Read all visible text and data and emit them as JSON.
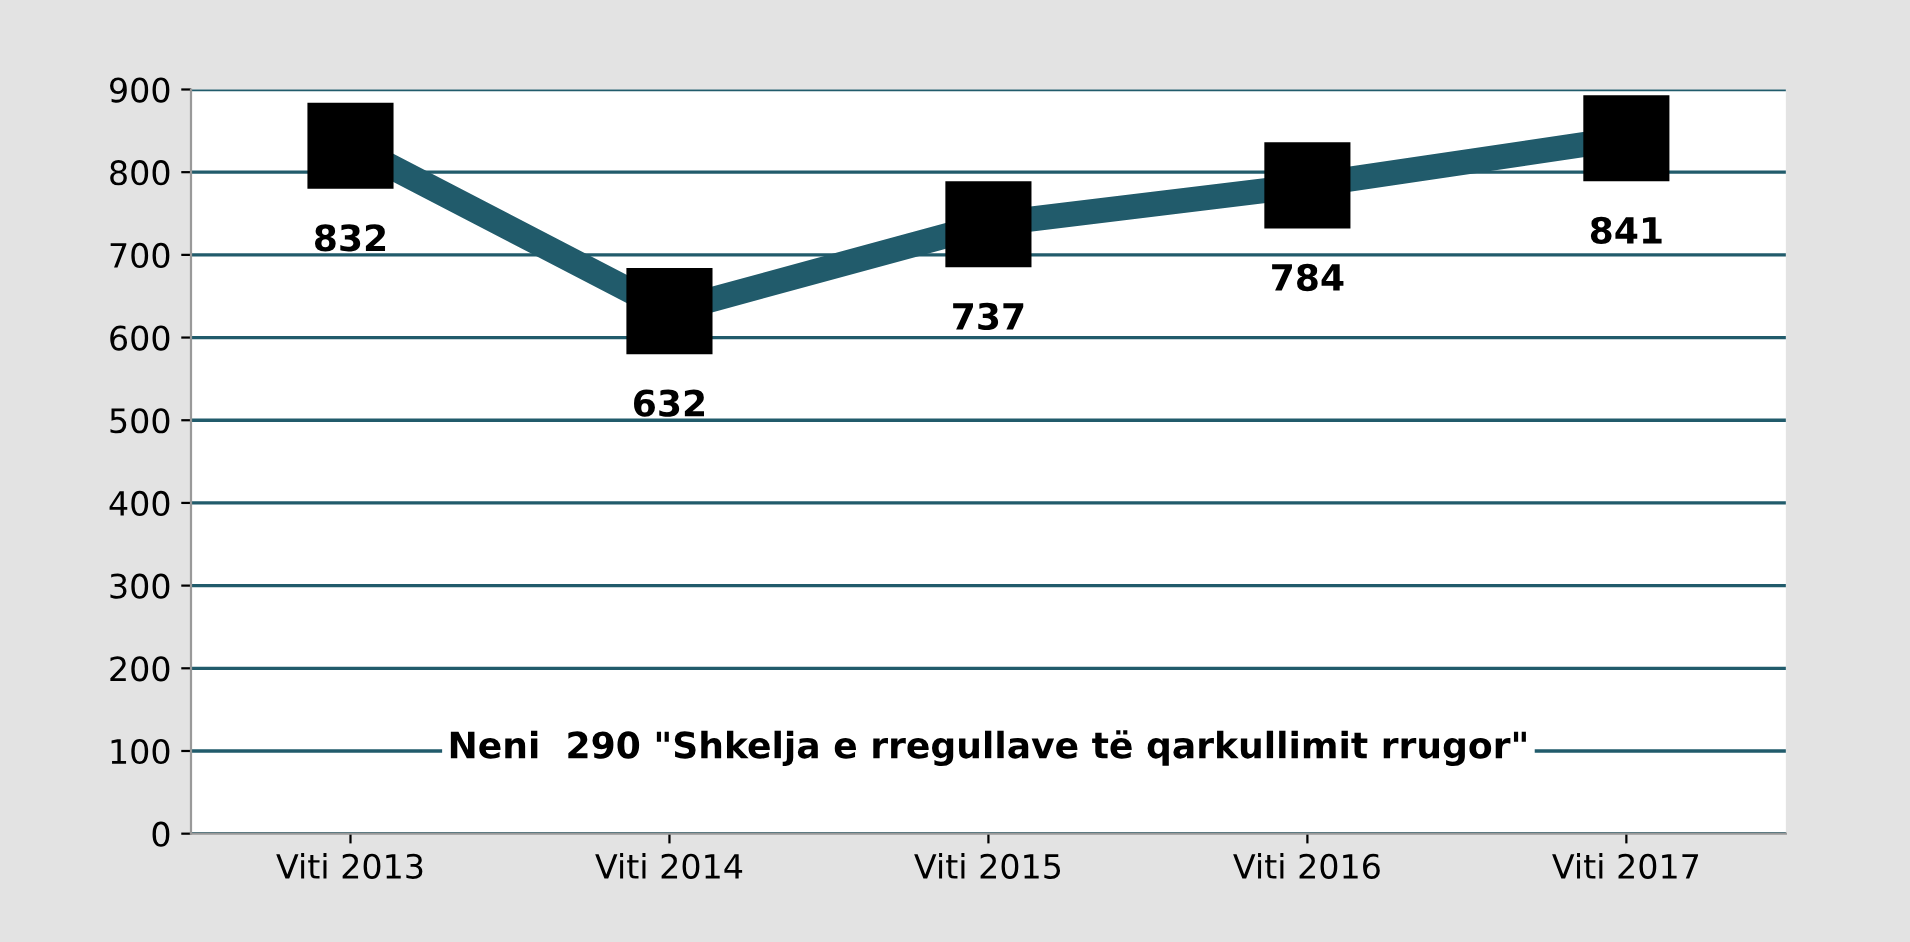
{
  "chart_data": {
    "type": "line",
    "title": "Neni  290 \"Shkelja e rregullave të qarkullimit rrugor\"",
    "categories": [
      "Viti 2013",
      "Viti 2014",
      "Viti 2015",
      "Viti 2016",
      "Viti 2017"
    ],
    "series": [
      {
        "color": "#215b6b",
        "values": [
          832,
          632,
          737,
          784,
          841
        ]
      }
    ],
    "ylim": [
      0,
      900
    ],
    "yticks": [
      0,
      100,
      200,
      300,
      400,
      500,
      600,
      700,
      800,
      900
    ],
    "grid": "y",
    "marker": "square",
    "line_style": "solid",
    "data_labels": true,
    "legend": false
  }
}
